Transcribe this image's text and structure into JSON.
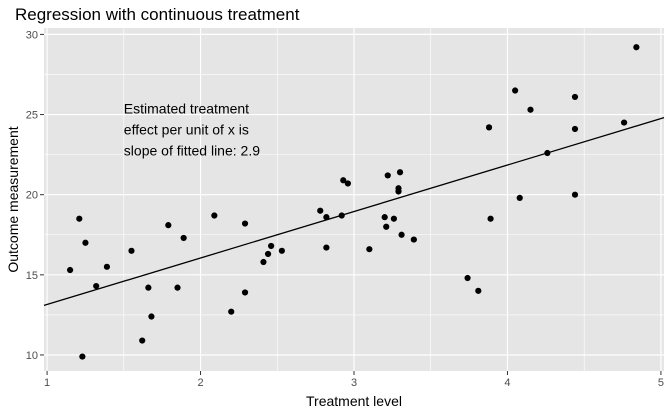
{
  "chart_data": {
    "type": "scatter",
    "title": "Regression with continuous treatment",
    "xlabel": "Treatment level",
    "ylabel": "Outcome measurement",
    "xlim": [
      0.98,
      5.02
    ],
    "ylim": [
      9.0,
      30.4
    ],
    "x_ticks": [
      1,
      2,
      3,
      4,
      5
    ],
    "y_ticks": [
      10,
      15,
      20,
      25,
      30
    ],
    "grid": true,
    "panel_background": "#e5e5e5",
    "grid_color": "#ffffff",
    "point_color": "#000000",
    "line_color": "#000000",
    "annotation": {
      "lines": [
        "Estimated treatment",
        "effect per unit of x is",
        "slope of fitted line: 2.9"
      ],
      "x": 1.5,
      "y": 25.0
    },
    "fitted_line": {
      "intercept": 13.15,
      "slope": 2.9,
      "x_range": [
        0.98,
        5.02
      ]
    },
    "points": [
      {
        "x": 1.15,
        "y": 15.3
      },
      {
        "x": 1.21,
        "y": 18.5
      },
      {
        "x": 1.23,
        "y": 9.9
      },
      {
        "x": 1.25,
        "y": 17.0
      },
      {
        "x": 1.32,
        "y": 14.3
      },
      {
        "x": 1.39,
        "y": 15.5
      },
      {
        "x": 1.55,
        "y": 16.5
      },
      {
        "x": 1.62,
        "y": 10.9
      },
      {
        "x": 1.66,
        "y": 14.2
      },
      {
        "x": 1.68,
        "y": 12.4
      },
      {
        "x": 1.79,
        "y": 18.1
      },
      {
        "x": 1.85,
        "y": 14.2
      },
      {
        "x": 1.89,
        "y": 17.3
      },
      {
        "x": 2.09,
        "y": 18.7
      },
      {
        "x": 2.2,
        "y": 12.7
      },
      {
        "x": 2.29,
        "y": 18.2
      },
      {
        "x": 2.29,
        "y": 13.9
      },
      {
        "x": 2.41,
        "y": 15.8
      },
      {
        "x": 2.44,
        "y": 16.3
      },
      {
        "x": 2.46,
        "y": 16.8
      },
      {
        "x": 2.53,
        "y": 16.5
      },
      {
        "x": 2.78,
        "y": 19.0
      },
      {
        "x": 2.82,
        "y": 18.6
      },
      {
        "x": 2.82,
        "y": 16.7
      },
      {
        "x": 2.92,
        "y": 18.7
      },
      {
        "x": 2.93,
        "y": 20.9
      },
      {
        "x": 2.96,
        "y": 20.7
      },
      {
        "x": 3.1,
        "y": 16.6
      },
      {
        "x": 3.2,
        "y": 18.6
      },
      {
        "x": 3.21,
        "y": 18.0
      },
      {
        "x": 3.22,
        "y": 21.2
      },
      {
        "x": 3.26,
        "y": 18.5
      },
      {
        "x": 3.29,
        "y": 20.2
      },
      {
        "x": 3.29,
        "y": 20.4
      },
      {
        "x": 3.3,
        "y": 21.4
      },
      {
        "x": 3.31,
        "y": 17.5
      },
      {
        "x": 3.39,
        "y": 17.2
      },
      {
        "x": 3.74,
        "y": 14.8
      },
      {
        "x": 3.81,
        "y": 14.0
      },
      {
        "x": 3.88,
        "y": 24.2
      },
      {
        "x": 3.89,
        "y": 18.5
      },
      {
        "x": 4.05,
        "y": 26.5
      },
      {
        "x": 4.08,
        "y": 19.8
      },
      {
        "x": 4.15,
        "y": 25.3
      },
      {
        "x": 4.26,
        "y": 22.6
      },
      {
        "x": 4.44,
        "y": 26.1
      },
      {
        "x": 4.44,
        "y": 24.1
      },
      {
        "x": 4.44,
        "y": 20.0
      },
      {
        "x": 4.76,
        "y": 24.5
      },
      {
        "x": 4.84,
        "y": 29.2
      }
    ]
  }
}
